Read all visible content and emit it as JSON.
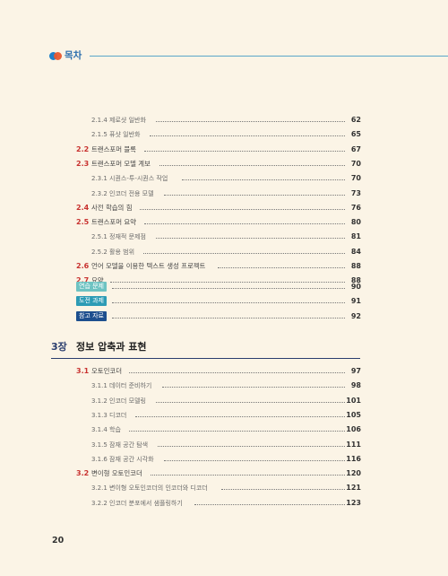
{
  "header": {
    "title": "목차"
  },
  "toc_before": [
    {
      "num": "",
      "label": "2.1.4 제로샷 일반화",
      "page": "62",
      "level": 3
    },
    {
      "num": "",
      "label": "2.1.5 퓨샷 일반화",
      "page": "65",
      "level": 3
    },
    {
      "num": "2.2",
      "label": "트랜스포머 블록",
      "page": "67",
      "level": 2
    },
    {
      "num": "2.3",
      "label": "트랜스포머 모델 계보",
      "page": "70",
      "level": 2
    },
    {
      "num": "",
      "label": "2.3.1 시퀀스-투-시퀀스 작업",
      "page": "70",
      "level": 3
    },
    {
      "num": "",
      "label": "2.3.2 인코더 전용 모델",
      "page": "73",
      "level": 3
    },
    {
      "num": "2.4",
      "label": "사전 학습의 힘",
      "page": "76",
      "level": 2
    },
    {
      "num": "2.5",
      "label": "트랜스포머 요약",
      "page": "80",
      "level": 2
    },
    {
      "num": "",
      "label": "2.5.1 정재적 문제점",
      "page": "81",
      "level": 3
    },
    {
      "num": "",
      "label": "2.5.2 활용 범위",
      "page": "84",
      "level": 3
    },
    {
      "num": "2.6",
      "label": "언어 모델을 이용한 텍스트 생성 프로젝트",
      "page": "88",
      "level": 2
    },
    {
      "num": "2.7",
      "label": "요약",
      "page": "88",
      "level": 2
    }
  ],
  "badges": [
    {
      "label": "연습 문제",
      "page": "90",
      "color": "#6ec3c2"
    },
    {
      "label": "도전 과제",
      "page": "91",
      "color": "#2d9bb5"
    },
    {
      "label": "참고 자료",
      "page": "92",
      "color": "#1d4f8e"
    }
  ],
  "chapter": {
    "num": "3장",
    "title": "정보 압축과 표현"
  },
  "toc_after": [
    {
      "num": "3.1",
      "label": "오토인코더",
      "page": "97",
      "level": 2
    },
    {
      "num": "",
      "label": "3.1.1 데이터 준비하기",
      "page": "98",
      "level": 3
    },
    {
      "num": "",
      "label": "3.1.2 인코더 모델링",
      "page": "101",
      "level": 3
    },
    {
      "num": "",
      "label": "3.1.3 디코더",
      "page": "105",
      "level": 3
    },
    {
      "num": "",
      "label": "3.1.4 학습",
      "page": "106",
      "level": 3
    },
    {
      "num": "",
      "label": "3.1.5 잠재 공간 탐색",
      "page": "111",
      "level": 3
    },
    {
      "num": "",
      "label": "3.1.6 잠재 공간 시각화",
      "page": "116",
      "level": 3
    },
    {
      "num": "3.2",
      "label": "변이형 오토인코더",
      "page": "120",
      "level": 2
    },
    {
      "num": "",
      "label": "3.2.1 변이형 오토인코더의 인코더와 디코더",
      "page": "121",
      "level": 3
    },
    {
      "num": "",
      "label": "3.2.2 인코더 분포에서 샘플링하기",
      "page": "123",
      "level": 3
    }
  ],
  "footer": {
    "page_number": "20"
  }
}
